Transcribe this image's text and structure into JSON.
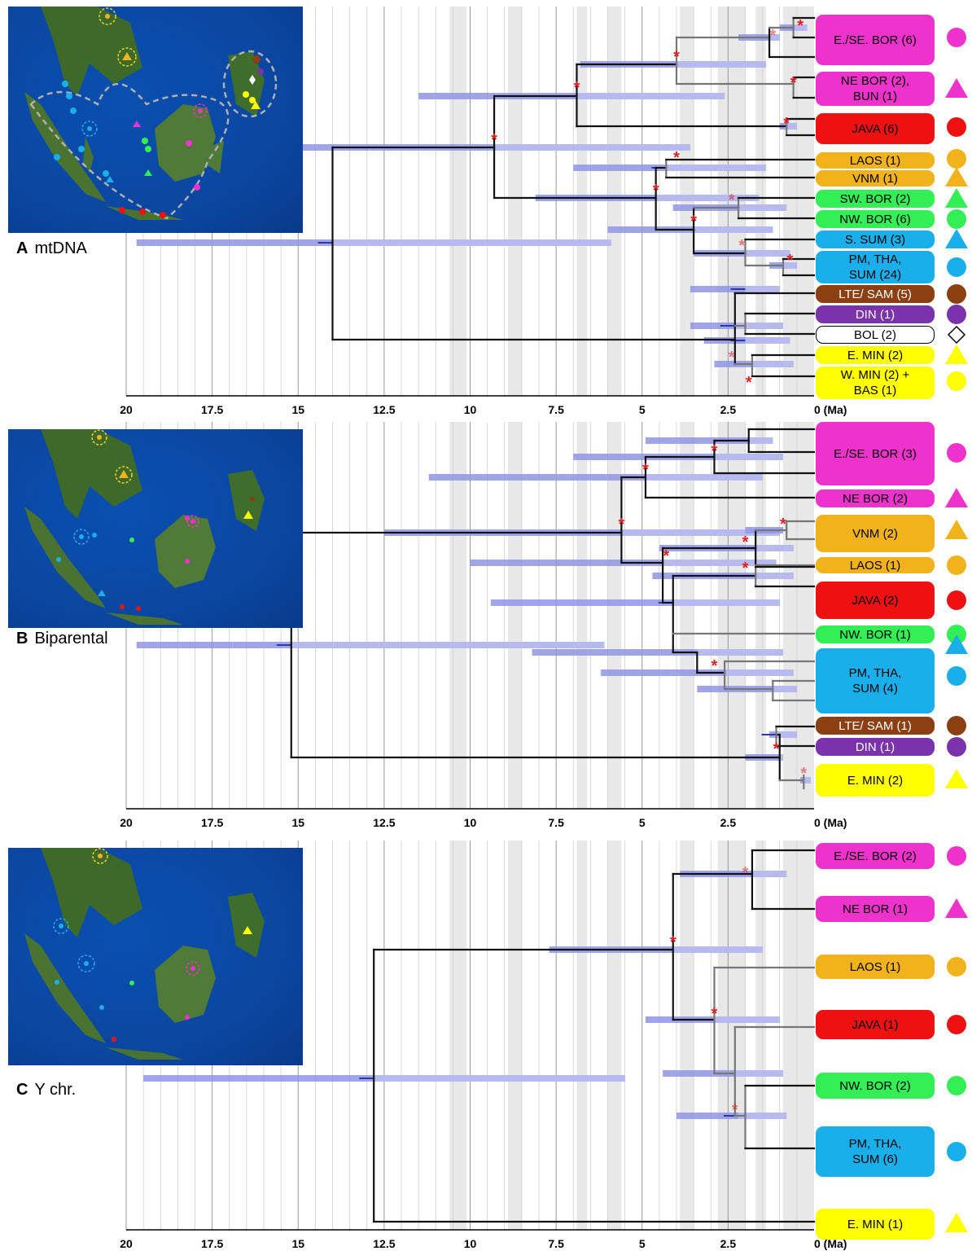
{
  "time_axis": {
    "ticks": [
      "20",
      "17.5",
      "15",
      "12.5",
      "10",
      "7.5",
      "5",
      "2.5",
      "0 (Ma)"
    ]
  },
  "panels": [
    {
      "letter": "A",
      "name": "mtDNA",
      "clades": [
        {
          "label": "E./SE. BOR (6)",
          "color": "#ee33cc",
          "shape": "circle"
        },
        {
          "label": "NE BOR (2),\nBUN (1)",
          "color": "#ee33cc",
          "shape": "triangle"
        },
        {
          "label": "JAVA (6)",
          "color": "#ee1111",
          "shape": "circle"
        },
        {
          "label": "LAOS (1)",
          "color": "#f2b21c",
          "shape": "circle"
        },
        {
          "label": "VNM (1)",
          "color": "#f2b21c",
          "shape": "triangle"
        },
        {
          "label": "SW. BOR (2)",
          "color": "#33ee55",
          "shape": "triangle"
        },
        {
          "label": "NW. BOR (6)",
          "color": "#33ee55",
          "shape": "circle"
        },
        {
          "label": "S. SUM (3)",
          "color": "#1aaeea",
          "shape": "triangle"
        },
        {
          "label": "PM, THA,\nSUM (24)",
          "color": "#1aaeea",
          "shape": "circle"
        },
        {
          "label": "LTE/ SAM (5)",
          "color": "#8b3f12",
          "shape": "circle"
        },
        {
          "label": "DIN (1)",
          "color": "#7a33aa",
          "shape": "circle"
        },
        {
          "label": "BOL (2)",
          "color": "#ffffff",
          "shape": "diamond"
        },
        {
          "label": "E. MIN (2)",
          "color": "#ffff00",
          "shape": "triangle"
        },
        {
          "label": "W. MIN (2) +\nBAS (1)",
          "color": "#ffff00",
          "shape": "circle"
        }
      ]
    },
    {
      "letter": "B",
      "name": "Biparental",
      "clades": [
        {
          "label": "E./SE. BOR (3)",
          "color": "#ee33cc",
          "shape": "circle"
        },
        {
          "label": "NE BOR (2)",
          "color": "#ee33cc",
          "shape": "triangle"
        },
        {
          "label": "VNM (2)",
          "color": "#f2b21c",
          "shape": "triangle"
        },
        {
          "label": "LAOS (1)",
          "color": "#f2b21c",
          "shape": "circle"
        },
        {
          "label": "JAVA (2)",
          "color": "#ee1111",
          "shape": "circle"
        },
        {
          "label": "NW. BOR (1)",
          "color": "#33ee55",
          "shape": "circle"
        },
        {
          "label": "PM, THA,\nSUM (4)",
          "color": "#1aaeea",
          "shape": "triangle+circle"
        },
        {
          "label": "LTE/ SAM (1)",
          "color": "#8b3f12",
          "shape": "circle"
        },
        {
          "label": "DIN (1)",
          "color": "#7a33aa",
          "shape": "circle"
        },
        {
          "label": "E. MIN (2)",
          "color": "#ffff00",
          "shape": "triangle"
        }
      ]
    },
    {
      "letter": "C",
      "name": "Y chr.",
      "clades": [
        {
          "label": "E./SE. BOR (2)",
          "color": "#ee33cc",
          "shape": "circle"
        },
        {
          "label": "NE BOR (1)",
          "color": "#ee33cc",
          "shape": "triangle"
        },
        {
          "label": "LAOS (1)",
          "color": "#f2b21c",
          "shape": "circle"
        },
        {
          "label": "JAVA (1)",
          "color": "#ee1111",
          "shape": "circle"
        },
        {
          "label": "NW. BOR (2)",
          "color": "#33ee55",
          "shape": "circle"
        },
        {
          "label": "PM, THA,\nSUM (6)",
          "color": "#1aaeea",
          "shape": "circle"
        },
        {
          "label": "E. MIN (1)",
          "color": "#ffff00",
          "shape": "triangle"
        }
      ]
    }
  ],
  "colors": {
    "hpd_bar": "#8f95e6",
    "hpd_bar_light": "#b9bdf0",
    "shade": "#e8e8e8",
    "tree_black": "#111111",
    "tree_grey": "#777777",
    "support_star": "#e02020"
  }
}
